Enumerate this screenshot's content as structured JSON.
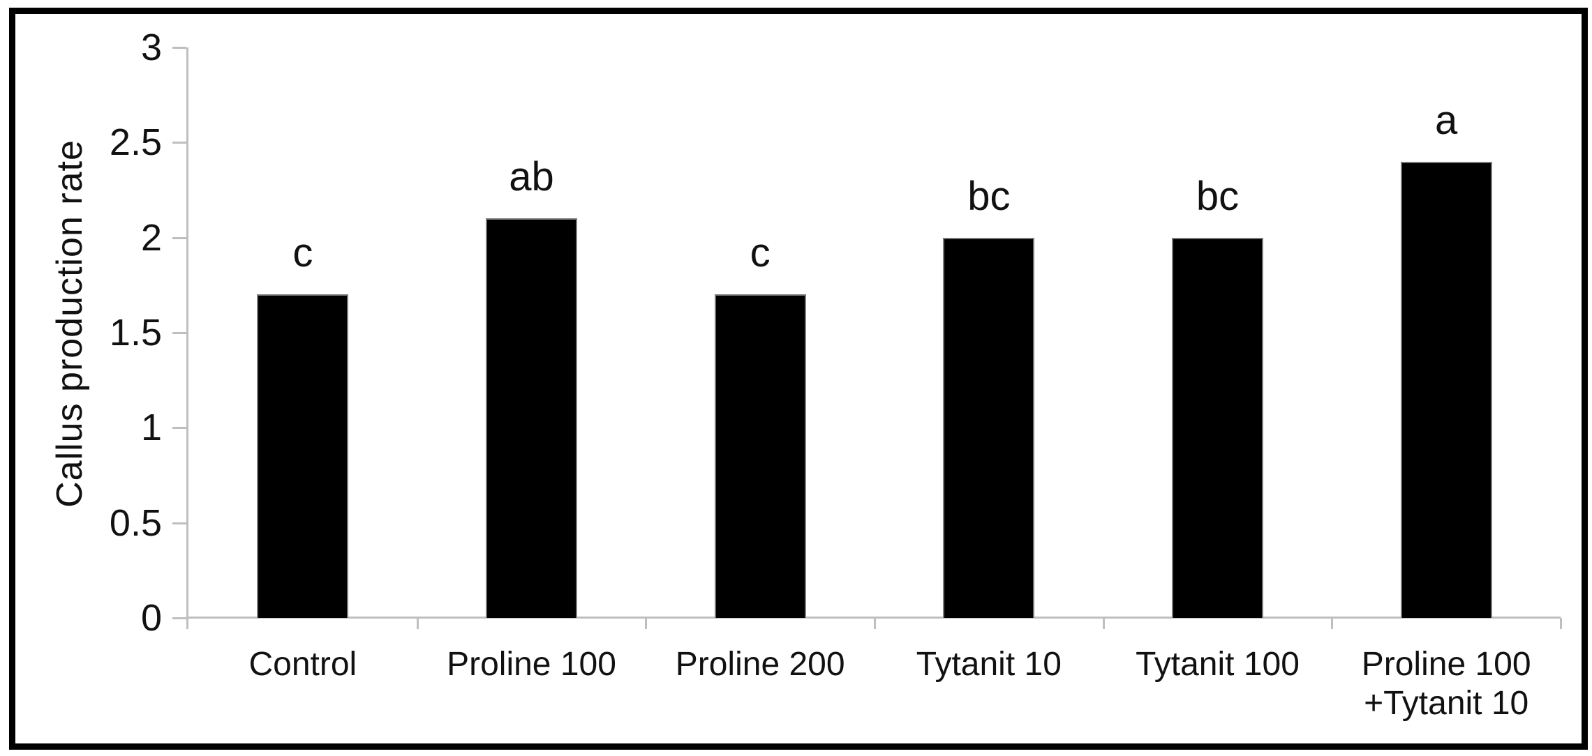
{
  "figure": {
    "background": "#ffffff",
    "border_color": "#000000"
  },
  "chart_data": {
    "type": "bar",
    "title": "",
    "xlabel": "",
    "ylabel": "Callus production rate",
    "categories": [
      "Control",
      "Proline 100",
      "Proline 200",
      "Tytanit 10",
      "Tytanit 100",
      "Proline 100 +Tytanit 10"
    ],
    "category_labels": [
      "Control",
      "Proline 100",
      "Proline 200",
      "Tytanit 10",
      "Tytanit 100",
      "Proline 100\n+Tytanit 10"
    ],
    "values": [
      1.7,
      2.1,
      1.7,
      2.0,
      2.0,
      2.4
    ],
    "significance_letters": [
      "c",
      "ab",
      "c",
      "bc",
      "bc",
      "a"
    ],
    "ylim": [
      0,
      3
    ],
    "yticks": [
      0,
      0.5,
      1,
      1.5,
      2,
      2.5,
      3
    ],
    "ytick_labels": [
      "0",
      "0.5",
      "1",
      "1.5",
      "2",
      "2.5",
      "3"
    ],
    "grid": false,
    "legend": "none",
    "bar_color": "#000000",
    "axis_color": "#bfbfbf",
    "text_color": "#111111"
  }
}
